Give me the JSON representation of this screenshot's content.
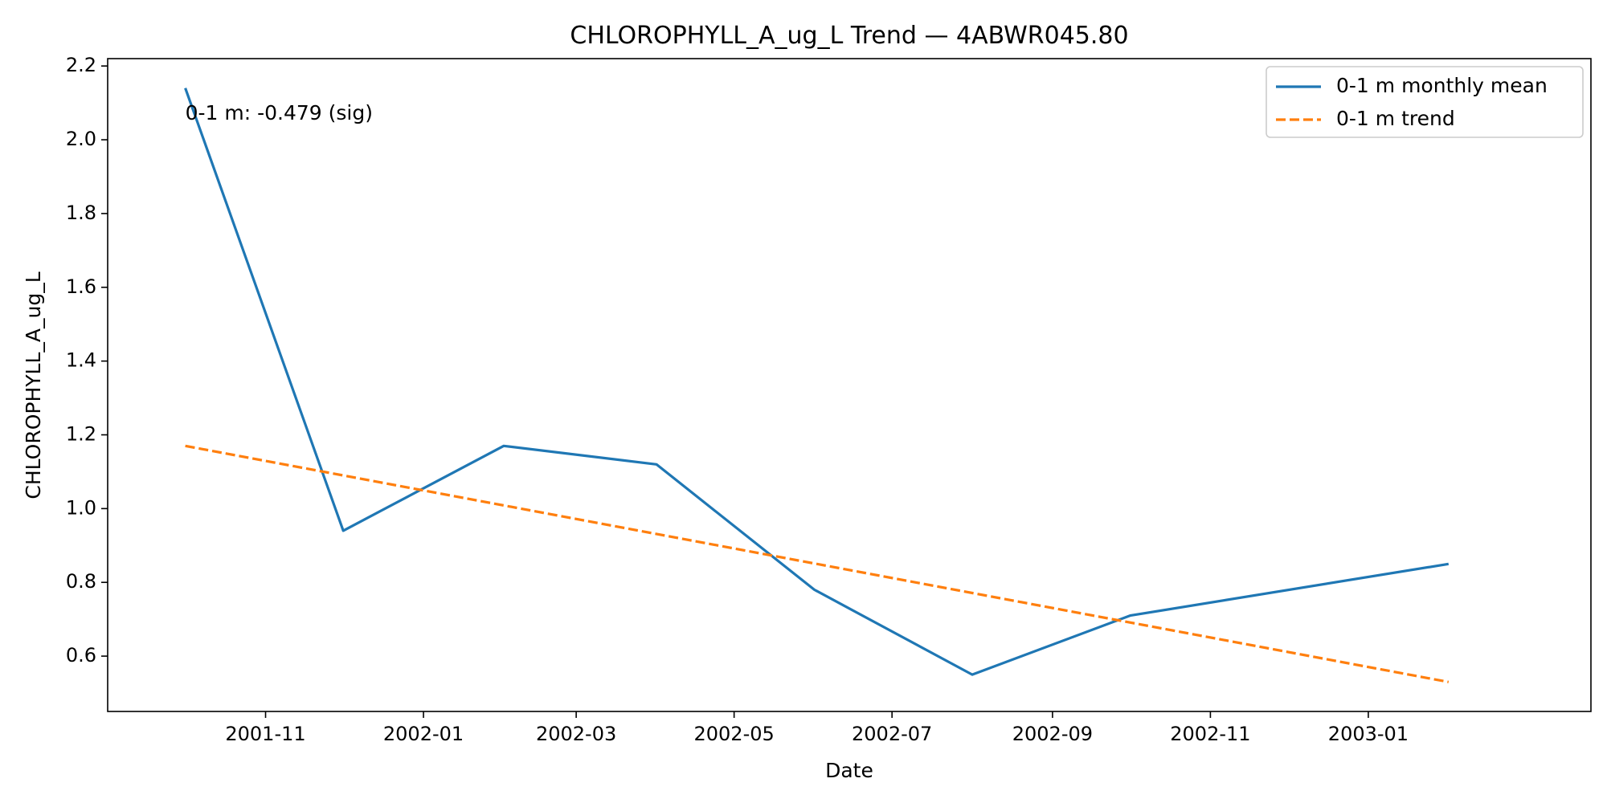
{
  "chart_data": {
    "type": "line",
    "title": "CHLOROPHYLL_A_ug_L Trend — 4ABWR045.80",
    "xlabel": "Date",
    "ylabel": "CHLOROPHYLL_A_ug_L",
    "xlim": [
      "2001-09-01",
      "2003-03-28"
    ],
    "ylim": [
      0.45,
      2.22
    ],
    "x_ticks": [
      "2001-11",
      "2002-01",
      "2002-03",
      "2002-05",
      "2002-07",
      "2002-09",
      "2002-11",
      "2003-01"
    ],
    "y_ticks": [
      0.6,
      0.8,
      1.0,
      1.2,
      1.4,
      1.6,
      1.8,
      2.0,
      2.2
    ],
    "grid": false,
    "legend_position": "top-right",
    "series": [
      {
        "name": "0-1 m monthly mean",
        "style": "solid",
        "color": "#1f77b4",
        "x": [
          "2001-10-01",
          "2001-12-01",
          "2002-02-01",
          "2002-04-01",
          "2002-06-01",
          "2002-08-01",
          "2002-10-01",
          "2003-02-01"
        ],
        "y": [
          2.14,
          0.94,
          1.17,
          1.12,
          0.78,
          0.55,
          0.71,
          0.85
        ]
      },
      {
        "name": "0-1 m trend",
        "style": "dashed",
        "color": "#ff7f0e",
        "x": [
          "2001-10-01",
          "2003-02-01"
        ],
        "y": [
          1.17,
          0.53
        ]
      }
    ],
    "annotations": [
      {
        "text": "0-1 m: -0.479 (sig)",
        "x": "2001-10-01",
        "y": 2.07
      }
    ]
  }
}
